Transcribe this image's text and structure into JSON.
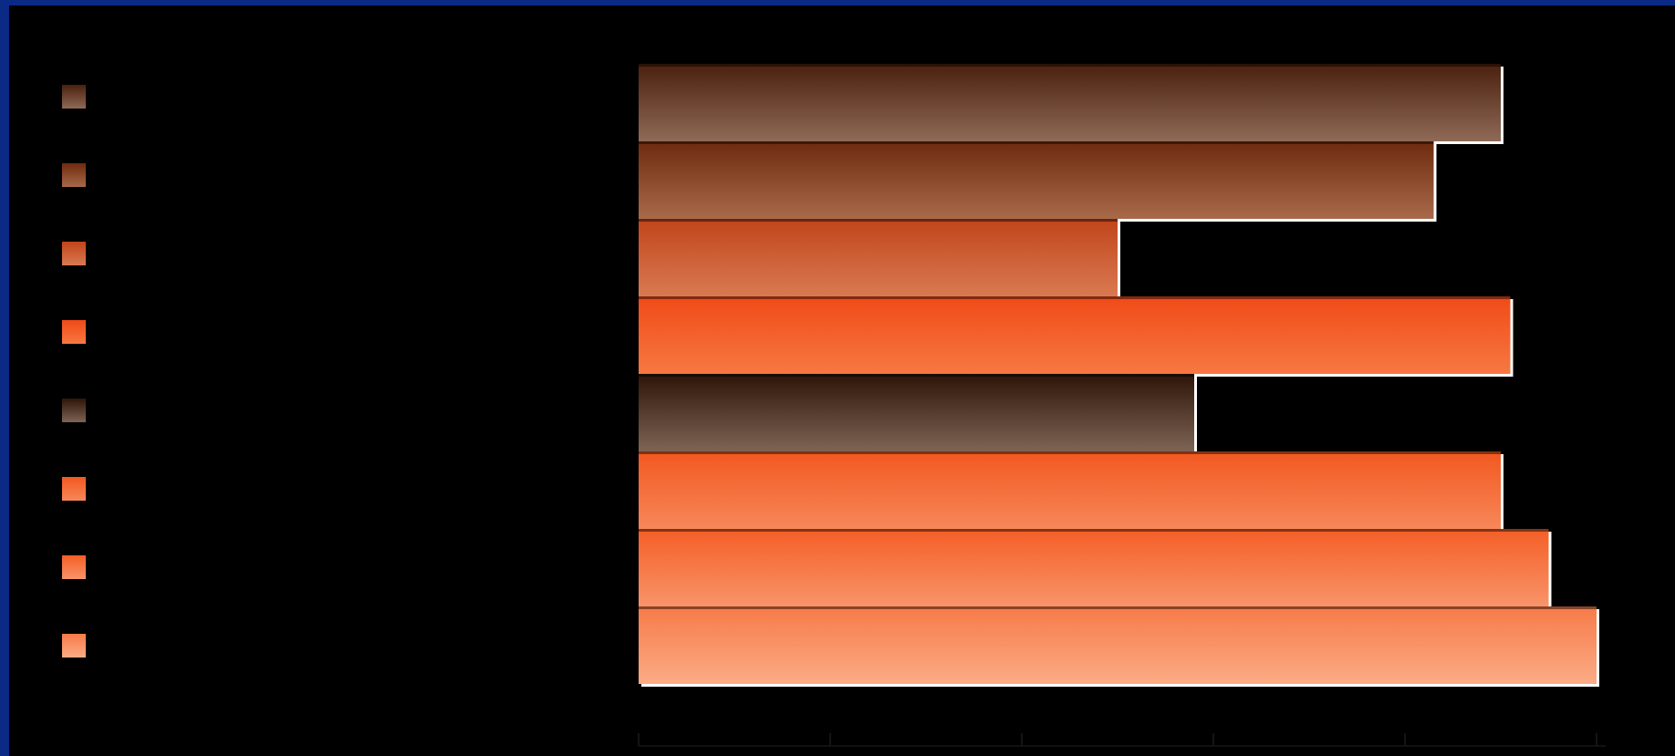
{
  "chart_data": {
    "type": "bar",
    "orientation": "horizontal",
    "categories": [
      "",
      "",
      "",
      "",
      "",
      "",
      "",
      ""
    ],
    "values": [
      90,
      83,
      50,
      91,
      58,
      90,
      95,
      100
    ],
    "xlim": [
      0,
      100
    ],
    "xticks": [
      0,
      20,
      40,
      60,
      80,
      100
    ],
    "legend_position": "left",
    "grid": false,
    "bar_colors": [
      [
        "#4a200e",
        "#8f6a56"
      ],
      [
        "#6e2a0e",
        "#a86a4a"
      ],
      [
        "#c1441a",
        "#d97a52"
      ],
      [
        "#f04a17",
        "#f77842"
      ],
      [
        "#2e1408",
        "#7d6454"
      ],
      [
        "#f2581f",
        "#f7875a"
      ],
      [
        "#f45e26",
        "#f8946a"
      ],
      [
        "#f77a48",
        "#fbac86"
      ]
    ]
  }
}
